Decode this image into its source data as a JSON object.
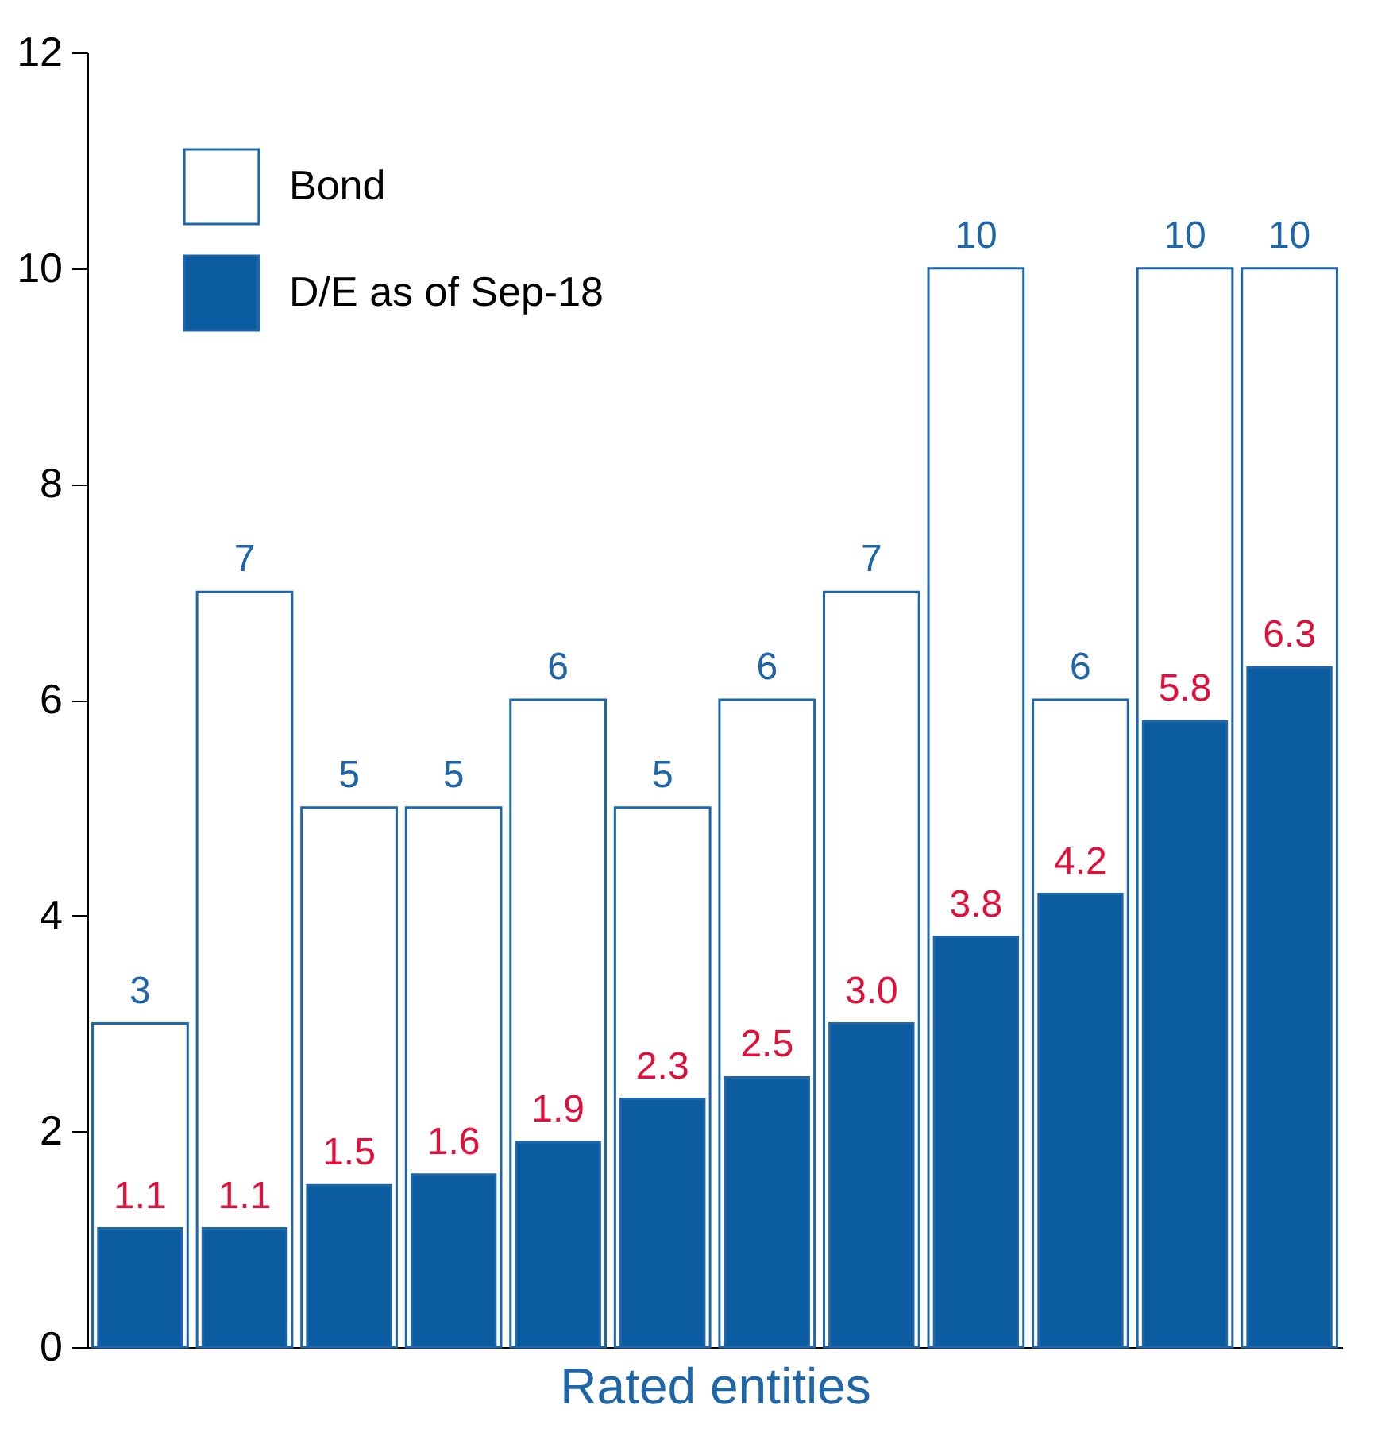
{
  "chart_data": {
    "type": "bar",
    "xlabel": "Rated entities",
    "categories": [
      null,
      null,
      null,
      null,
      null,
      null,
      null,
      null,
      null,
      null,
      null,
      null
    ],
    "series": [
      {
        "name": "Bond",
        "type": "bar",
        "color": "#ffffff",
        "values": [
          3,
          7,
          5,
          5,
          6,
          5,
          6,
          7,
          10,
          6,
          10,
          10
        ],
        "value_labels": [
          "3",
          "7",
          "5",
          "5",
          "6",
          "5",
          "6",
          "7",
          "10",
          "6",
          "10",
          "10"
        ]
      },
      {
        "name": "D/E as of Sep-18",
        "type": "bar",
        "color": "#0b5ca0",
        "values": [
          1.1,
          1.1,
          1.5,
          1.6,
          1.9,
          2.3,
          2.5,
          3.0,
          3.8,
          4.2,
          5.8,
          6.3
        ],
        "value_labels": [
          "1.1",
          "1.1",
          "1.5",
          "1.6",
          "1.9",
          "2.3",
          "2.5",
          "3.0",
          "3.8",
          "4.2",
          "5.8",
          "6.3"
        ]
      }
    ],
    "ylim": [
      0,
      12
    ],
    "yticks": [
      0,
      2,
      4,
      6,
      8,
      10,
      12
    ],
    "grid": false,
    "legend": "top left"
  }
}
